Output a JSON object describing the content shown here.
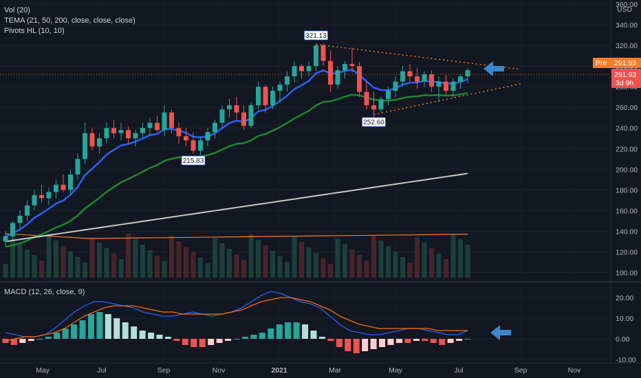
{
  "legend": {
    "vol": "Vol (20)",
    "tema": "TEMA (21, 50, 200, close, close, close)",
    "pivots": "Pivots HL (10, 10)",
    "macd": "MACD (12, 26, close, 9)"
  },
  "price_axis": {
    "currency": "USD",
    "ticks": [
      "360.00",
      "340.00",
      "320.00",
      "300.00",
      "280.00",
      "260.00",
      "240.00",
      "220.00",
      "200.00",
      "180.00",
      "160.00",
      "140.00",
      "120.00",
      "100.00"
    ]
  },
  "macd_axis": {
    "ticks": [
      "20.00",
      "10.00",
      "0.00",
      "-10.00"
    ]
  },
  "x_axis": {
    "ticks": [
      "May",
      "Jul",
      "Sep",
      "Nov",
      "2021",
      "Mar",
      "May",
      "Jul",
      "Sep",
      "Nov"
    ]
  },
  "badges": {
    "pre_label": "Pre",
    "pre_value": "291.93",
    "last_value": "291.93",
    "countdown": "3d 9h"
  },
  "pivot_labels": {
    "high": "321.13",
    "low1": "215.83",
    "low2": "252.60"
  },
  "colors": {
    "background": "#131722",
    "up": "#26a69a",
    "down": "#ef5350",
    "tema21": "#2962ff",
    "tema50": "#1b8a2a",
    "tema200": "#c9c9c9",
    "vol_ma": "#f57c28",
    "macd_line": "#2962ff",
    "signal_line": "#ff6d00",
    "trendline": "#f57c28",
    "arrow": "#3b87c9"
  },
  "chart_data": {
    "type": "candlestick",
    "price_range": [
      95,
      360
    ],
    "macd_range": [
      -11,
      25
    ],
    "candles": [
      [
        130,
        140,
        125,
        135
      ],
      [
        135,
        150,
        132,
        148
      ],
      [
        148,
        160,
        143,
        155
      ],
      [
        155,
        170,
        150,
        165
      ],
      [
        165,
        180,
        160,
        175
      ],
      [
        175,
        185,
        168,
        172
      ],
      [
        172,
        182,
        165,
        178
      ],
      [
        178,
        190,
        172,
        185
      ],
      [
        185,
        195,
        178,
        180
      ],
      [
        180,
        200,
        176,
        195
      ],
      [
        195,
        215,
        190,
        210
      ],
      [
        210,
        245,
        205,
        235
      ],
      [
        235,
        240,
        218,
        222
      ],
      [
        222,
        235,
        215,
        230
      ],
      [
        230,
        245,
        225,
        240
      ],
      [
        240,
        248,
        230,
        235
      ],
      [
        235,
        245,
        228,
        238
      ],
      [
        238,
        242,
        225,
        230
      ],
      [
        230,
        238,
        222,
        235
      ],
      [
        235,
        245,
        230,
        240
      ],
      [
        240,
        250,
        232,
        245
      ],
      [
        245,
        252,
        236,
        238
      ],
      [
        238,
        262,
        232,
        255
      ],
      [
        255,
        258,
        235,
        240
      ],
      [
        240,
        245,
        225,
        232
      ],
      [
        232,
        240,
        222,
        228
      ],
      [
        228,
        236,
        215,
        218
      ],
      [
        218,
        232,
        212,
        228
      ],
      [
        228,
        240,
        222,
        236
      ],
      [
        236,
        248,
        230,
        245
      ],
      [
        245,
        262,
        240,
        258
      ],
      [
        258,
        268,
        250,
        262
      ],
      [
        262,
        270,
        248,
        255
      ],
      [
        255,
        262,
        238,
        242
      ],
      [
        242,
        265,
        240,
        262
      ],
      [
        262,
        285,
        258,
        280
      ],
      [
        280,
        282,
        255,
        262
      ],
      [
        262,
        280,
        258,
        276
      ],
      [
        276,
        285,
        265,
        282
      ],
      [
        282,
        295,
        275,
        290
      ],
      [
        290,
        305,
        284,
        300
      ],
      [
        300,
        302,
        288,
        295
      ],
      [
        295,
        305,
        290,
        300
      ],
      [
        300,
        322,
        295,
        320
      ],
      [
        320,
        322,
        300,
        305
      ],
      [
        305,
        315,
        275,
        282
      ],
      [
        282,
        300,
        278,
        296
      ],
      [
        296,
        305,
        288,
        302
      ],
      [
        302,
        318,
        294,
        300
      ],
      [
        300,
        304,
        270,
        275
      ],
      [
        275,
        285,
        258,
        262
      ],
      [
        262,
        275,
        250,
        258
      ],
      [
        258,
        270,
        255,
        268
      ],
      [
        268,
        280,
        262,
        276
      ],
      [
        276,
        290,
        270,
        285
      ],
      [
        285,
        300,
        280,
        295
      ],
      [
        295,
        302,
        284,
        290
      ],
      [
        290,
        298,
        278,
        285
      ],
      [
        285,
        295,
        280,
        292
      ],
      [
        292,
        296,
        275,
        280
      ],
      [
        280,
        290,
        265,
        285
      ],
      [
        285,
        292,
        272,
        276
      ],
      [
        276,
        288,
        270,
        285
      ],
      [
        285,
        292,
        278,
        290
      ],
      [
        290,
        298,
        284,
        296
      ]
    ],
    "pivots": {
      "high": 321.13,
      "lows": [
        215.83,
        252.6
      ]
    },
    "last_price": 291.93,
    "macd": {
      "histogram": [
        -2,
        -3,
        -2,
        -1,
        0,
        1,
        3,
        5,
        7,
        9,
        12,
        13,
        12,
        10,
        8,
        6,
        4,
        3,
        2,
        1,
        -1,
        -3,
        -4,
        -4,
        -3,
        -2,
        -1,
        0,
        1,
        2,
        3,
        5,
        7,
        8,
        8,
        7,
        4,
        1,
        -1,
        -4,
        -6,
        -7,
        -6,
        -5,
        -4,
        -3,
        -2,
        -2,
        -1,
        -1,
        -2,
        -3,
        -2,
        -1,
        0
      ]
    }
  }
}
